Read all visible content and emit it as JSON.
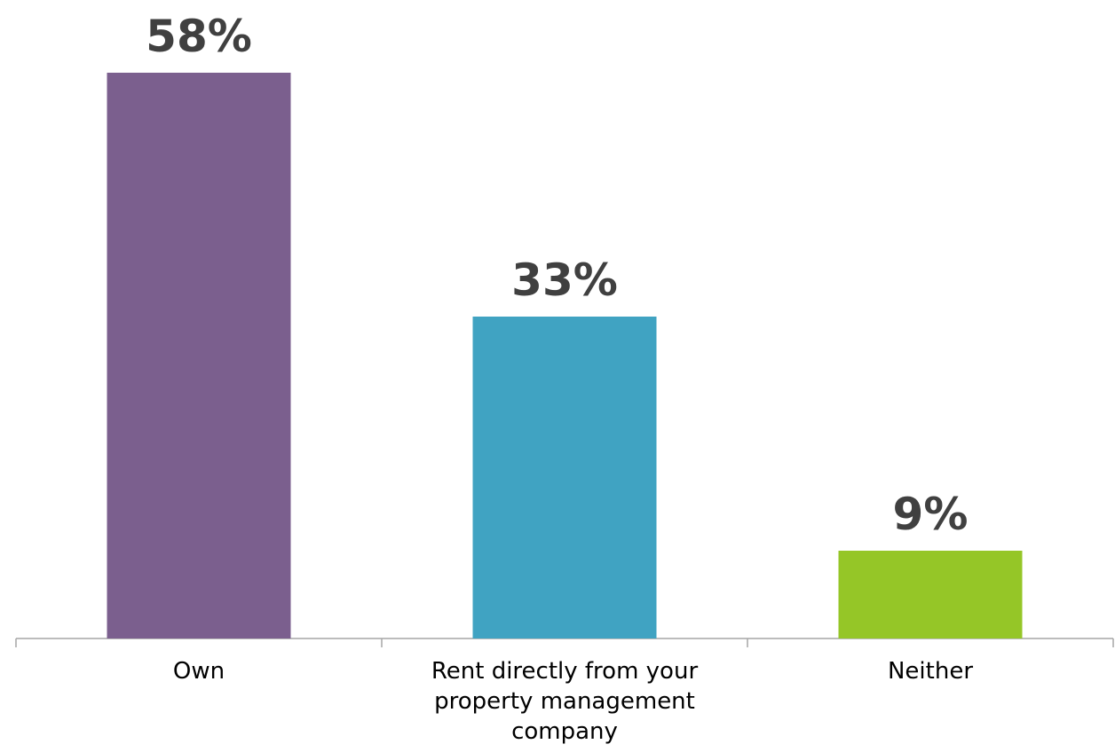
{
  "chart_data": {
    "type": "bar",
    "categories": [
      "Own",
      "Rent directly from your property management company",
      "Neither"
    ],
    "values": [
      58,
      33,
      9
    ],
    "value_labels": [
      "58%",
      "33%",
      "9%"
    ],
    "colors": [
      "#7b5f8e",
      "#40a3c2",
      "#95c627"
    ]
  }
}
